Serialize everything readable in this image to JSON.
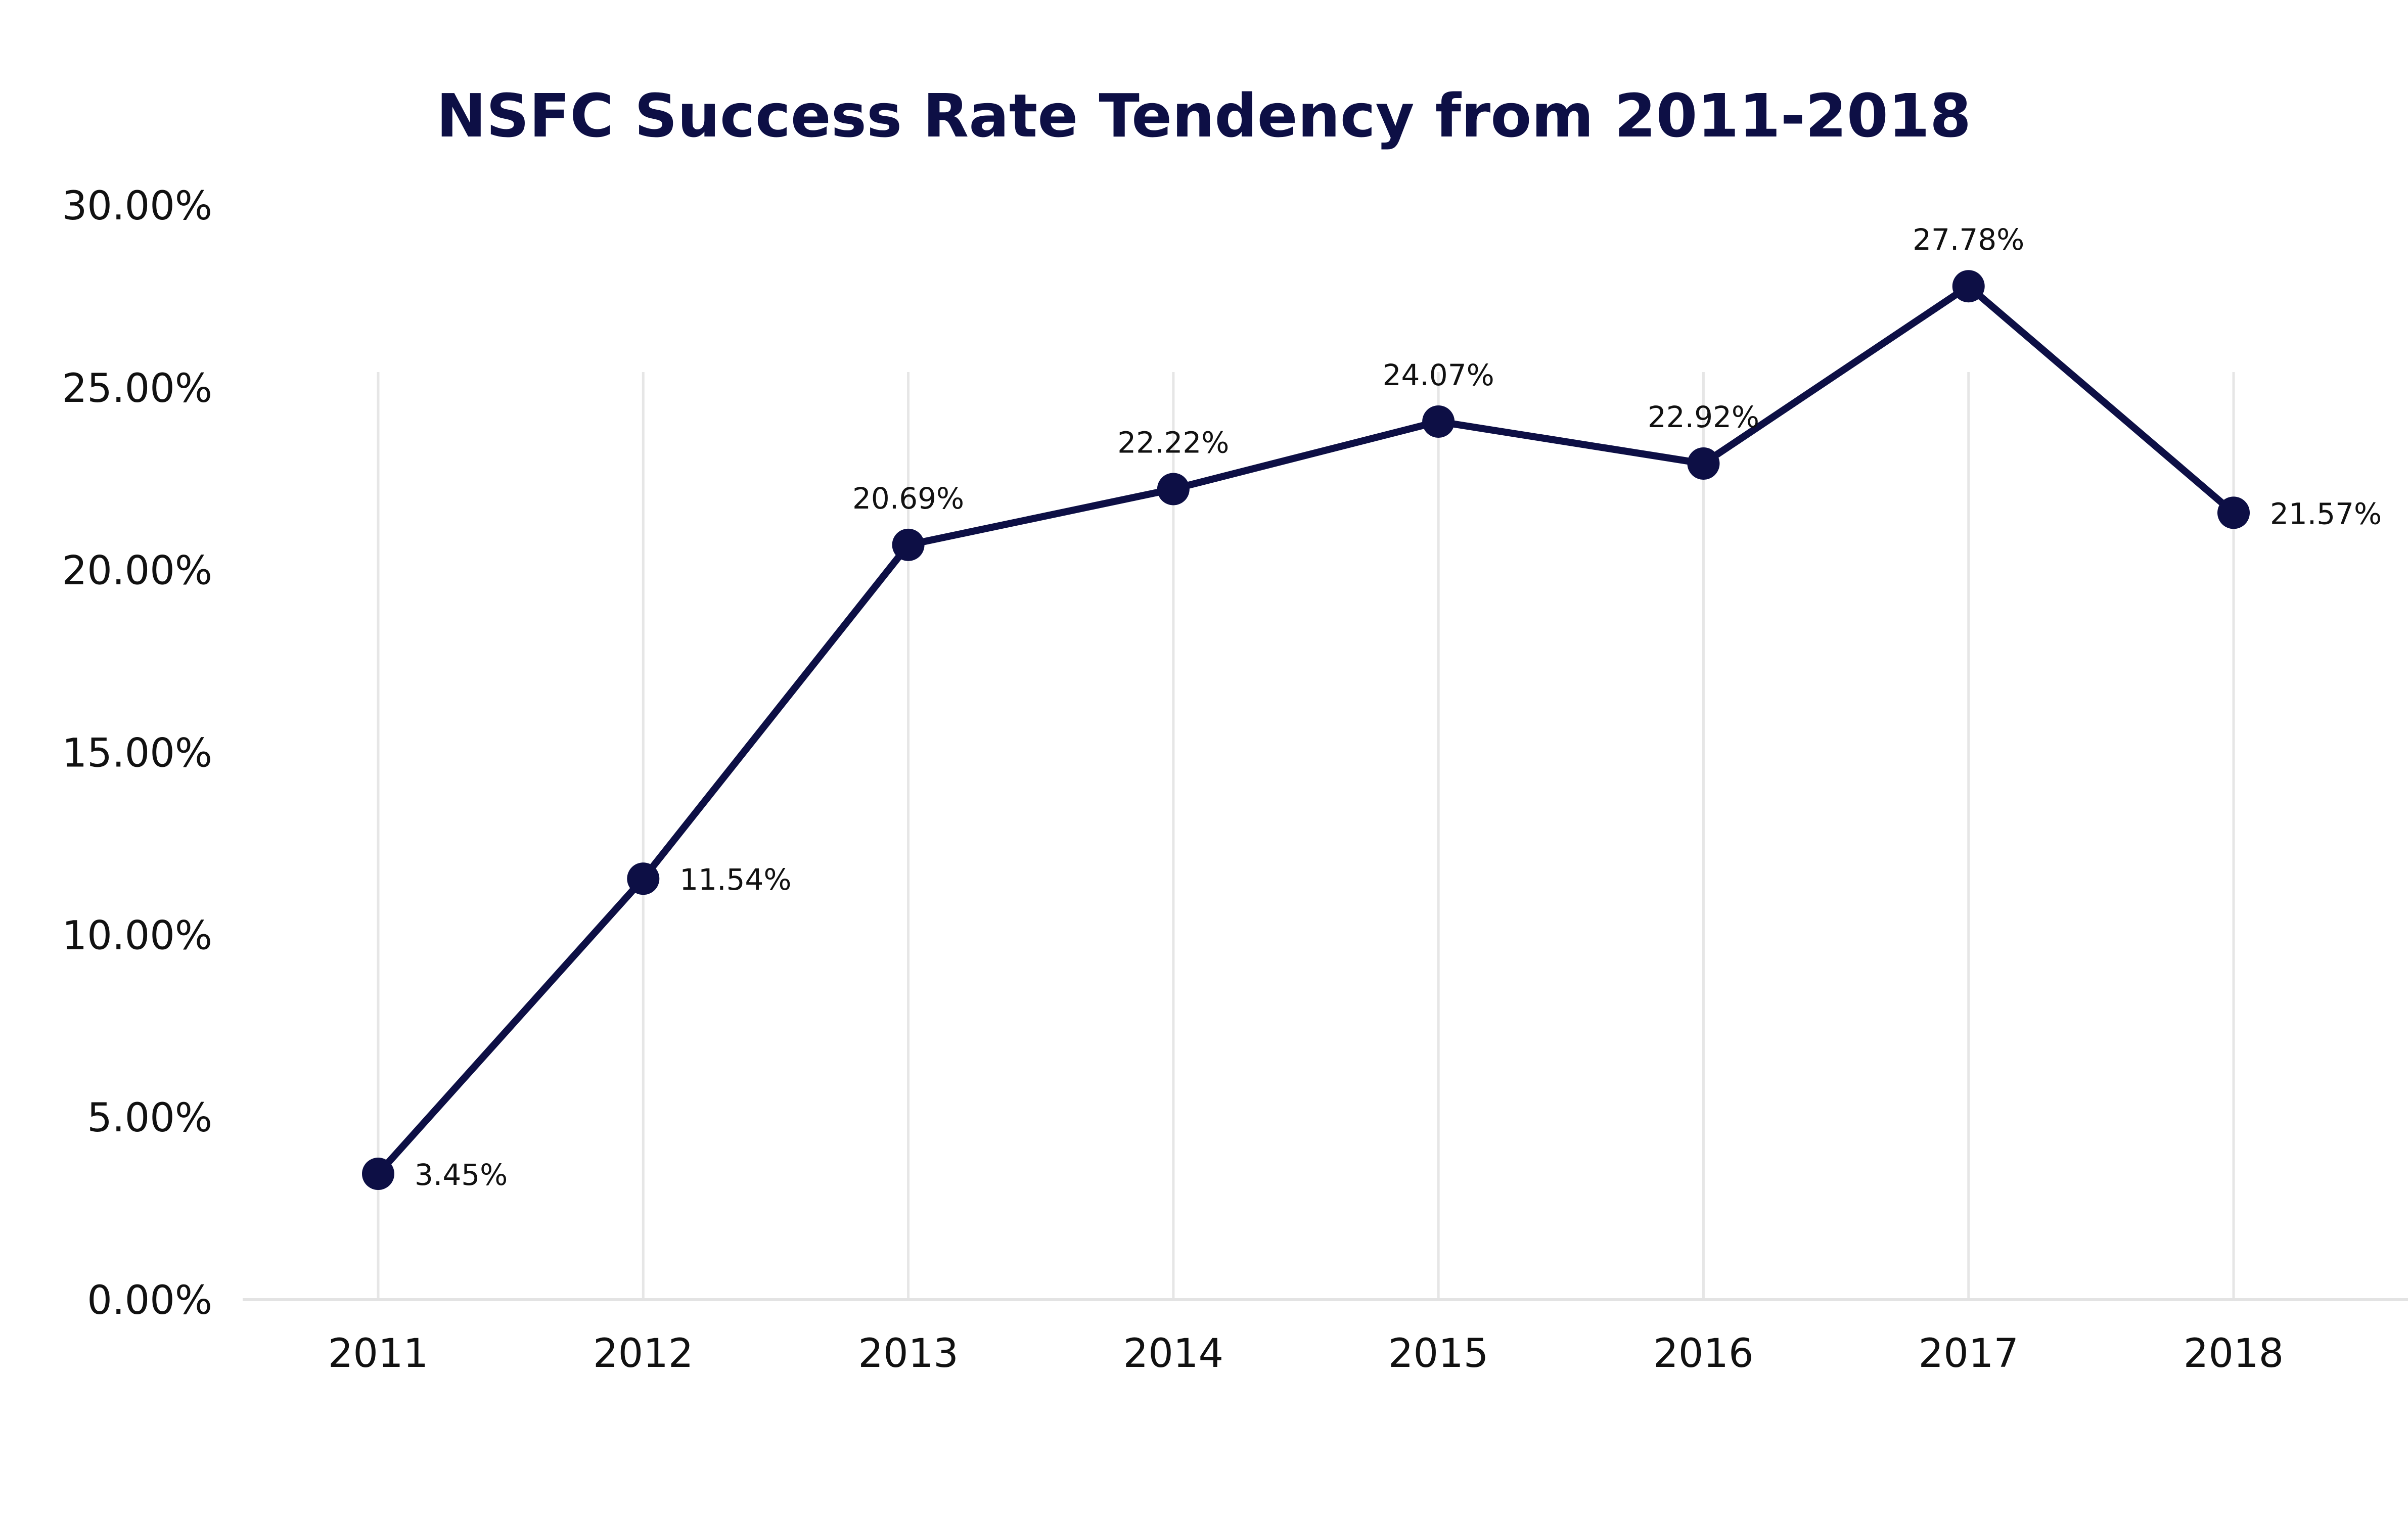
{
  "chart_data": {
    "type": "line",
    "title": "NSFC Success Rate Tendency from 2011-2018",
    "xlabel": "",
    "ylabel": "",
    "categories": [
      "2011",
      "2012",
      "2013",
      "2014",
      "2015",
      "2016",
      "2017",
      "2018"
    ],
    "series": [
      {
        "values": [
          3.45,
          11.54,
          20.69,
          22.22,
          24.07,
          22.92,
          27.78,
          21.57
        ],
        "labels": [
          "3.45%",
          "11.54%",
          "20.69%",
          "22.22%",
          "24.07%",
          "22.92%",
          "27.78%",
          "21.57%"
        ],
        "label_positions": [
          "right",
          "right",
          "above",
          "above",
          "above",
          "above",
          "above",
          "right"
        ]
      }
    ],
    "ylim": [
      0,
      30
    ],
    "yticks": [
      0,
      5,
      10,
      15,
      20,
      25,
      30
    ],
    "ytick_labels": [
      "0.00%",
      "5.00%",
      "10.00%",
      "15.00%",
      "20.00%",
      "25.00%",
      "30.00%"
    ],
    "grid": "vertical",
    "legend": "none"
  },
  "colors": {
    "line": "#0d0f45",
    "marker": "#0d0f45",
    "title": "#0d0f45",
    "text": "#111111",
    "gridline": "#e6e6e6",
    "axis": "#e3e3e3"
  }
}
